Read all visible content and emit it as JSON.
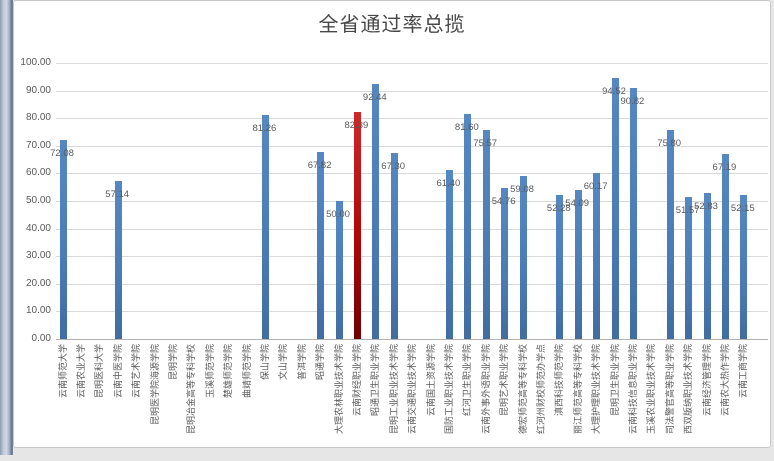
{
  "chart_data": {
    "type": "bar",
    "title": "全省通过率总揽",
    "xlabel": "",
    "ylabel": "",
    "ylim": [
      0,
      100
    ],
    "ytick_step": 10,
    "yticks": [
      "0.00",
      "10.00",
      "20.00",
      "30.00",
      "40.00",
      "50.00",
      "60.00",
      "70.00",
      "80.00",
      "90.00",
      "100.00"
    ],
    "grid": true,
    "legend": "none",
    "value_label_format": "0.00",
    "highlight_index": 16,
    "colors": {
      "bar": "#4a7bb5",
      "highlight_bar": "#c00000",
      "label_text": "#595959",
      "gridline": "#d9d9d9"
    },
    "categories": [
      "云南师范大学",
      "云南农业大学",
      "昆明医科大学",
      "云南中医学院",
      "云南艺术学院",
      "昆明医学院海源学院",
      "昆明学院",
      "昆明冶金高等专科学校",
      "玉溪师范学院",
      "楚雄师范学院",
      "曲靖师范学院",
      "保山学院",
      "文山学院",
      "普洱学院",
      "昭通学院",
      "大理农林职业技术学院",
      "云南财经职业学院",
      "昭通卫生职业学院",
      "昆明工业职业技术学院",
      "云南交通职业技术学院",
      "云南国土资源学院",
      "国防工业职业技术学院",
      "红河卫生职业学院",
      "云南外事外语职业学院",
      "昆明艺术职业学院",
      "德宏师范高等专科学校",
      "红河州财校师范办学点",
      "滇西科技师范学院",
      "丽江师范高等专科学校",
      "大理护理职业技术学院",
      "昆明卫生职业学院",
      "云南科技信息职业学院",
      "玉溪农业职业技术学院",
      "司法警官高等职业学院",
      "西双版纳职业技术学院",
      "云南经济管理学院",
      "云南农大热作学院",
      "云南工商学院"
    ],
    "values": [
      72.08,
      null,
      null,
      57.14,
      null,
      null,
      null,
      null,
      null,
      null,
      null,
      81.26,
      null,
      null,
      67.82,
      50.0,
      82.39,
      92.44,
      67.3,
      null,
      null,
      61.4,
      81.6,
      75.57,
      54.76,
      59.08,
      null,
      52.28,
      54.09,
      60.17,
      94.52,
      90.82,
      null,
      75.8,
      51.57,
      52.83,
      67.19,
      52.15
    ]
  }
}
